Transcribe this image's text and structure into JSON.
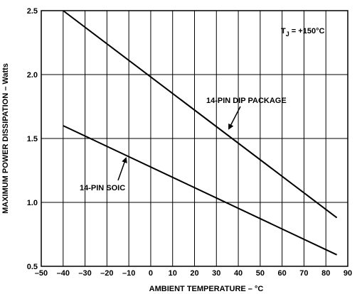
{
  "chart_data": {
    "type": "line",
    "title": "",
    "xlabel": "AMBIENT TEMPERATURE – °C",
    "ylabel": "MAXIMUM POWER DISSIPATION – Watts",
    "xlim": [
      -50,
      90
    ],
    "ylim": [
      0.5,
      2.5
    ],
    "x_ticks": [
      "–50",
      "–40",
      "–30",
      "–20",
      "–10",
      "0",
      "10",
      "20",
      "30",
      "40",
      "50",
      "60",
      "70",
      "80",
      "90"
    ],
    "y_ticks": [
      "0.5",
      "1.0",
      "1.5",
      "2.0",
      "2.5"
    ],
    "grid": true,
    "series": [
      {
        "name": "14-PIN DIP PACKAGE",
        "x": [
          -40,
          85
        ],
        "y": [
          2.5,
          0.88
        ]
      },
      {
        "name": "14-PIN SOIC",
        "x": [
          -40,
          85
        ],
        "y": [
          1.6,
          0.59
        ]
      }
    ],
    "annotations": {
      "tj": {
        "prefix": "T",
        "sub": "J",
        "suffix": " = +150°C"
      },
      "dip_label": "14-PIN DIP PACKAGE",
      "soic_label": "14-PIN SOIC"
    }
  }
}
